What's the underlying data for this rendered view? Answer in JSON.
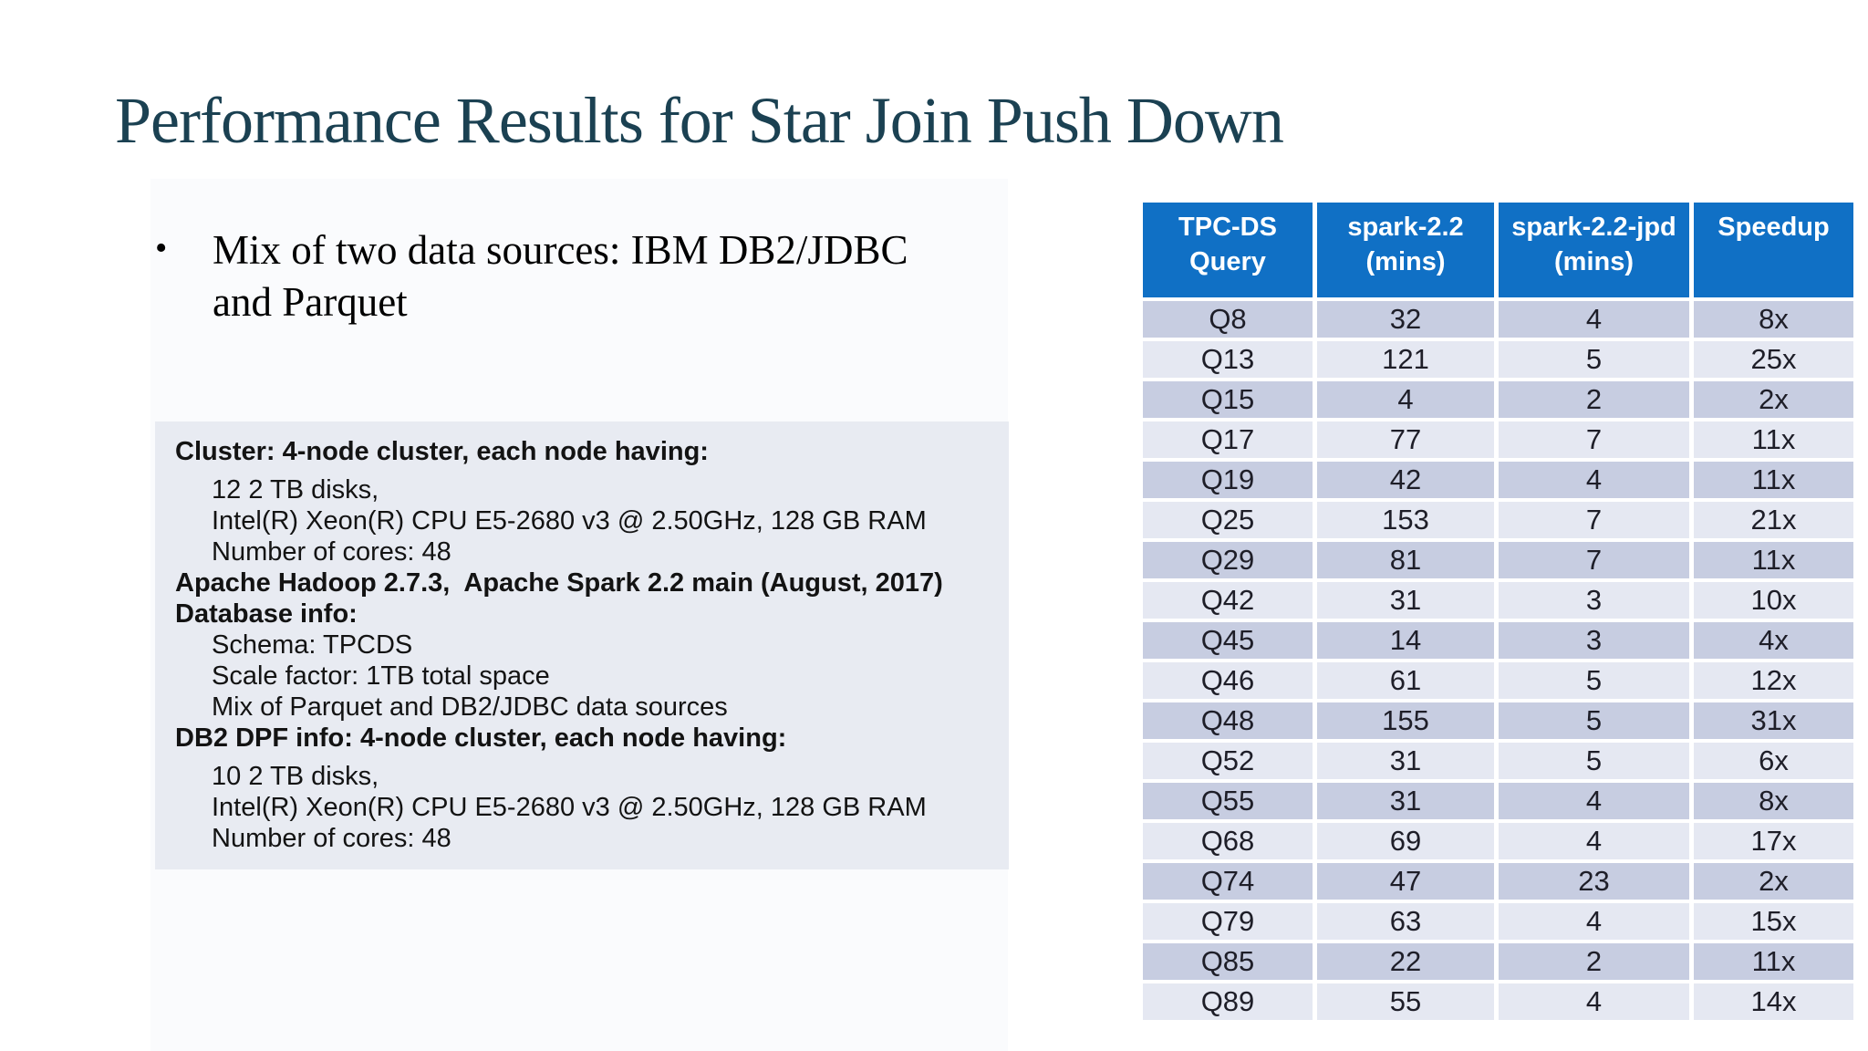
{
  "page": {
    "title": "Performance Results for Star Join Push Down",
    "background": "#ffffff"
  },
  "bullet": {
    "marker": "•",
    "lines": [
      "Mix of two data sources: IBM DB2/JDBC",
      "and Parquet"
    ]
  },
  "info_box": {
    "lines": [
      {
        "text": "Cluster: 4-node cluster, each node having:",
        "bold": true,
        "indent": 0,
        "gap": false
      },
      {
        "text": "12 2 TB disks,",
        "bold": false,
        "indent": 1,
        "gap": true
      },
      {
        "text": "Intel(R) Xeon(R) CPU E5-2680 v3 @ 2.50GHz, 128 GB RAM",
        "bold": false,
        "indent": 1,
        "gap": false
      },
      {
        "text": "Number of cores: 48",
        "bold": false,
        "indent": 1,
        "gap": false
      },
      {
        "text": "Apache Hadoop 2.7.3,  Apache Spark 2.2 main (August, 2017)",
        "bold": true,
        "indent": 0,
        "gap": false
      },
      {
        "text": "Database info:",
        "bold": true,
        "indent": 0,
        "gap": false
      },
      {
        "text": "Schema: TPCDS",
        "bold": false,
        "indent": 1,
        "gap": false
      },
      {
        "text": "Scale factor: 1TB total space",
        "bold": false,
        "indent": 1,
        "gap": false
      },
      {
        "text": "Mix of Parquet and DB2/JDBC data sources",
        "bold": false,
        "indent": 1,
        "gap": false
      },
      {
        "text": "DB2 DPF info: 4-node cluster, each node having:",
        "bold": true,
        "indent": 0,
        "gap": false
      },
      {
        "text": "10 2 TB disks,",
        "bold": false,
        "indent": 1,
        "gap": true
      },
      {
        "text": "Intel(R) Xeon(R) CPU E5-2680 v3 @ 2.50GHz, 128 GB RAM",
        "bold": false,
        "indent": 1,
        "gap": false
      },
      {
        "text": "Number of cores: 48",
        "bold": false,
        "indent": 1,
        "gap": false
      }
    ]
  },
  "table": {
    "header_lines": [
      [
        "TPC-DS",
        "Query"
      ],
      [
        "spark-2.2",
        "(mins)"
      ],
      [
        "spark-2.2-jpd",
        "(mins)"
      ],
      [
        "Speedup"
      ]
    ],
    "rows": [
      [
        "Q8",
        "32",
        "4",
        "8x"
      ],
      [
        "Q13",
        "121",
        "5",
        "25x"
      ],
      [
        "Q15",
        "4",
        "2",
        "2x"
      ],
      [
        "Q17",
        "77",
        "7",
        "11x"
      ],
      [
        "Q19",
        "42",
        "4",
        "11x"
      ],
      [
        "Q25",
        "153",
        "7",
        "21x"
      ],
      [
        "Q29",
        "81",
        "7",
        "11x"
      ],
      [
        "Q42",
        "31",
        "3",
        "10x"
      ],
      [
        "Q45",
        "14",
        "3",
        "4x"
      ],
      [
        "Q46",
        "61",
        "5",
        "12x"
      ],
      [
        "Q48",
        "155",
        "5",
        "31x"
      ],
      [
        "Q52",
        "31",
        "5",
        "6x"
      ],
      [
        "Q55",
        "31",
        "4",
        "8x"
      ],
      [
        "Q68",
        "69",
        "4",
        "17x"
      ],
      [
        "Q74",
        "47",
        "23",
        "2x"
      ],
      [
        "Q79",
        "63",
        "4",
        "15x"
      ],
      [
        "Q85",
        "22",
        "2",
        "11x"
      ],
      [
        "Q89",
        "55",
        "4",
        "14x"
      ]
    ]
  },
  "colors": {
    "title": "#1b4152",
    "header_bg": "#1070c5",
    "header_text": "#ffffff",
    "row_dark": "#c7cde1",
    "row_light": "#e5e8f2",
    "info_box_bg": "#e8ebf2",
    "body_text": "#1e1e28"
  }
}
